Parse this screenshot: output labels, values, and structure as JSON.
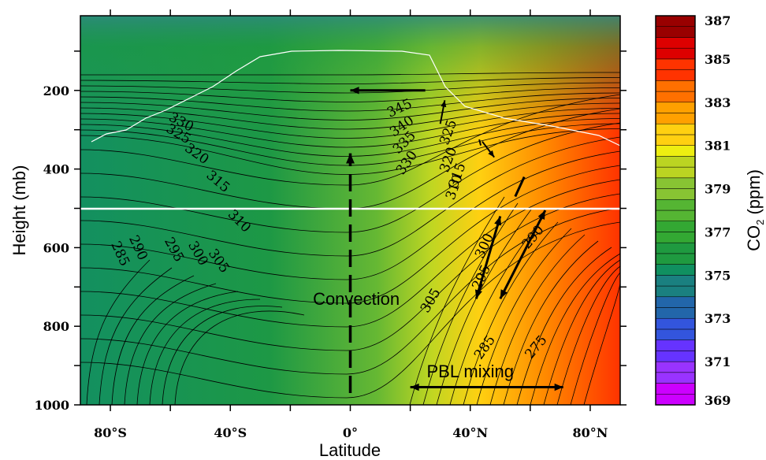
{
  "chart_data": {
    "type": "heatmap",
    "xlabel": "Latitude",
    "ylabel": "Height (mb)",
    "xlim": [
      -90,
      90
    ],
    "ylim": [
      1000,
      10
    ],
    "x_ticks": [
      {
        "value": -80,
        "label": "80°S"
      },
      {
        "value": -40,
        "label": "40°S"
      },
      {
        "value": 0,
        "label": "0°"
      },
      {
        "value": 40,
        "label": "40°N"
      },
      {
        "value": 80,
        "label": "80°N"
      }
    ],
    "y_ticks": [
      {
        "value": 200,
        "label": "200"
      },
      {
        "value": 400,
        "label": "400"
      },
      {
        "value": 600,
        "label": "600"
      },
      {
        "value": 800,
        "label": "800"
      },
      {
        "value": 1000,
        "label": "1000"
      }
    ],
    "colorbar": {
      "label_main": "CO",
      "label_sub": "2",
      "label_unit": " (ppm)",
      "min": 369,
      "max": 387,
      "step": 0.5,
      "tick_labels": [
        "387",
        "385",
        "383",
        "381",
        "379",
        "377",
        "375",
        "373",
        "371",
        "369"
      ],
      "colors": [
        "#cc00ff",
        "#9933ff",
        "#6633ff",
        "#3355dd",
        "#2266aa",
        "#1a8080",
        "#109060",
        "#1f9a40",
        "#33a833",
        "#55b533",
        "#88c433",
        "#bbd422",
        "#eeee11",
        "#ffd011",
        "#ffa000",
        "#ff7000",
        "#ff3300",
        "#dd0000",
        "#990000"
      ]
    },
    "contour_labels": [
      {
        "text": "330",
        "lat": -57,
        "p": 290,
        "rot": 28
      },
      {
        "text": "325",
        "lat": -58,
        "p": 320,
        "rot": 30
      },
      {
        "text": "320",
        "lat": -52,
        "p": 370,
        "rot": 35
      },
      {
        "text": "315",
        "lat": -45,
        "p": 440,
        "rot": 40
      },
      {
        "text": "310",
        "lat": -38,
        "p": 540,
        "rot": 45
      },
      {
        "text": "305",
        "lat": -45,
        "p": 640,
        "rot": 55
      },
      {
        "text": "300",
        "lat": -52,
        "p": 620,
        "rot": 60
      },
      {
        "text": "295",
        "lat": -60,
        "p": 610,
        "rot": 62
      },
      {
        "text": "290",
        "lat": -72,
        "p": 605,
        "rot": 65
      },
      {
        "text": "285",
        "lat": -78,
        "p": 620,
        "rot": 65
      },
      {
        "text": "345",
        "lat": 17,
        "p": 255,
        "rot": -25
      },
      {
        "text": "340",
        "lat": 18,
        "p": 300,
        "rot": -35
      },
      {
        "text": "335",
        "lat": 19,
        "p": 340,
        "rot": -45
      },
      {
        "text": "330",
        "lat": 20,
        "p": 390,
        "rot": -55
      },
      {
        "text": "325",
        "lat": 34,
        "p": 310,
        "rot": -70
      },
      {
        "text": "320",
        "lat": 34,
        "p": 380,
        "rot": -70
      },
      {
        "text": "315",
        "lat": 37,
        "p": 420,
        "rot": -70
      },
      {
        "text": "310",
        "lat": 36,
        "p": 450,
        "rot": -70
      },
      {
        "text": "305",
        "lat": 28,
        "p": 740,
        "rot": -60
      },
      {
        "text": "300",
        "lat": 46,
        "p": 600,
        "rot": -65
      },
      {
        "text": "295",
        "lat": 45,
        "p": 680,
        "rot": -65
      },
      {
        "text": "290",
        "lat": 62,
        "p": 580,
        "rot": -50
      },
      {
        "text": "285",
        "lat": 46,
        "p": 860,
        "rot": -55
      },
      {
        "text": "275",
        "lat": 63,
        "p": 860,
        "rot": -50
      }
    ],
    "annotations": [
      {
        "text": "Convection",
        "lat": 2,
        "p": 745
      },
      {
        "text": "PBL mixing",
        "lat": 40,
        "p": 930
      }
    ]
  }
}
